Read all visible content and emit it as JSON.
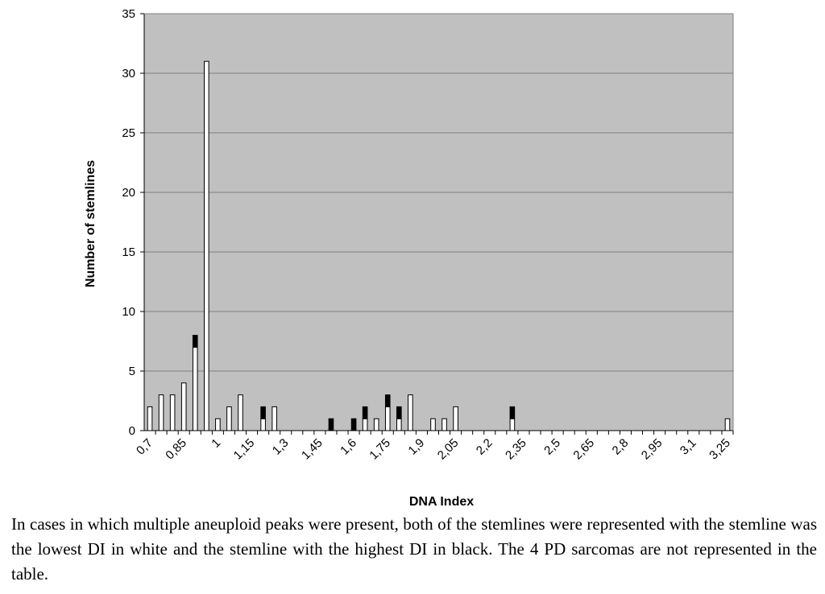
{
  "chart_data": {
    "type": "bar",
    "stacked": true,
    "xlabel": "DNA Index",
    "ylabel": "Number of stemlines",
    "ylim": [
      0,
      35
    ],
    "yticks": [
      0,
      5,
      10,
      15,
      20,
      25,
      30,
      35
    ],
    "xticks": [
      "0,7",
      "0,85",
      "1",
      "1,15",
      "1,3",
      "1,45",
      "1,6",
      "1,75",
      "1,9",
      "2,05",
      "2,2",
      "2,35",
      "2,5",
      "2,65",
      "2,8",
      "2,95",
      "3,1",
      "3,25"
    ],
    "x": [
      0.7,
      0.75,
      0.8,
      0.85,
      0.9,
      0.95,
      1.0,
      1.05,
      1.1,
      1.15,
      1.2,
      1.25,
      1.3,
      1.35,
      1.4,
      1.45,
      1.5,
      1.55,
      1.6,
      1.65,
      1.7,
      1.75,
      1.8,
      1.85,
      1.9,
      1.95,
      2.0,
      2.05,
      2.1,
      2.15,
      2.2,
      2.25,
      2.3,
      2.35,
      2.4,
      2.45,
      2.5,
      2.55,
      2.6,
      2.65,
      2.7,
      2.75,
      2.8,
      2.85,
      2.9,
      2.95,
      3.0,
      3.05,
      3.1,
      3.15,
      3.2,
      3.25
    ],
    "series": [
      {
        "color": "#ffffff",
        "values": [
          2,
          3,
          3,
          4,
          7,
          31,
          1,
          2,
          3,
          0,
          1,
          2,
          0,
          0,
          0,
          0,
          0,
          0,
          0,
          1,
          1,
          2,
          1,
          3,
          0,
          1,
          1,
          2,
          0,
          0,
          0,
          0,
          1,
          0,
          0,
          0,
          0,
          0,
          0,
          0,
          0,
          0,
          0,
          0,
          0,
          0,
          0,
          0,
          0,
          0,
          0,
          1
        ]
      },
      {
        "color": "#000000",
        "values": [
          0,
          0,
          0,
          0,
          1,
          0,
          0,
          0,
          0,
          0,
          1,
          0,
          0,
          0,
          0,
          0,
          1,
          0,
          1,
          1,
          0,
          1,
          1,
          0,
          0,
          0,
          0,
          0,
          0,
          0,
          0,
          0,
          1,
          0,
          0,
          0,
          0,
          0,
          0,
          0,
          0,
          0,
          0,
          0,
          0,
          0,
          0,
          0,
          0,
          0,
          0,
          0
        ]
      }
    ],
    "plot_bg": "#c0c0c0",
    "grid": true,
    "legend": "none"
  },
  "caption": "In cases in which multiple aneuploid peaks were present, both of the stemlines were represented with the stemline was the lowest DI in white and the stemline with the highest DI in black. The 4 PD sarcomas are not represented in the table."
}
